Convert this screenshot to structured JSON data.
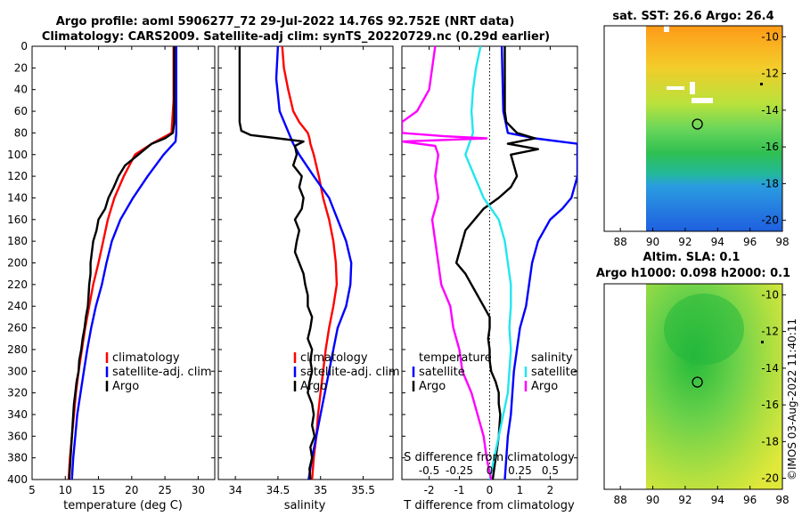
{
  "title": {
    "line1": "Argo profile: aoml 5906277_72 29-Jul-2022 14.76S 92.752E (NRT data)",
    "line2": "Climatology: CARS2009. Satellite-adj clim: synTS_20220729.nc (0.29d earlier)"
  },
  "credit": "©IMOS 03-Aug-2022 11:40:11",
  "colors": {
    "climatology": "#ff0000",
    "satellite": "#0000ff",
    "argo": "#000000",
    "cyan": "#22e6ee",
    "magenta": "#ff00ff"
  },
  "chart_data": [
    {
      "id": "temperature",
      "type": "line",
      "xlabel": "temperature (deg C)",
      "xlim": [
        5,
        32.5
      ],
      "ylim": [
        0,
        400
      ],
      "xticks": [
        5,
        10,
        15,
        20,
        25,
        30
      ],
      "yticks": [
        0,
        20,
        40,
        60,
        80,
        100,
        120,
        140,
        160,
        180,
        200,
        220,
        240,
        260,
        280,
        300,
        320,
        340,
        360,
        380,
        400
      ],
      "legend": [
        "climatology",
        "satellite-adj. clim",
        "Argo"
      ],
      "series": [
        {
          "name": "climatology",
          "color": "#ff0000",
          "depth": [
            0,
            50,
            80,
            90,
            100,
            120,
            140,
            160,
            180,
            200,
            220,
            240,
            260,
            280,
            300,
            320,
            340,
            360,
            380,
            400
          ],
          "values": [
            26.3,
            26.3,
            26.0,
            23.0,
            20.5,
            18.8,
            17.4,
            16.4,
            15.7,
            15.0,
            14.2,
            13.6,
            13.0,
            12.5,
            12.0,
            11.6,
            11.3,
            11.0,
            10.7,
            10.5
          ]
        },
        {
          "name": "satellite-adj. clim",
          "color": "#0000ff",
          "depth": [
            0,
            80,
            88,
            100,
            120,
            140,
            160,
            180,
            200,
            220,
            240,
            260,
            280,
            300,
            320,
            340,
            360,
            380,
            400
          ],
          "values": [
            26.7,
            26.7,
            26.6,
            24.8,
            22.4,
            20.2,
            18.3,
            17.0,
            16.2,
            15.5,
            14.6,
            13.9,
            13.3,
            12.8,
            12.3,
            11.8,
            11.5,
            11.2,
            11.0
          ]
        },
        {
          "name": "Argo",
          "color": "#000000",
          "depth": [
            0,
            70,
            80,
            85,
            90,
            95,
            100,
            110,
            120,
            130,
            140,
            150,
            160,
            170,
            180,
            190,
            200,
            210,
            220,
            230,
            240,
            250,
            260,
            270,
            280,
            290,
            300,
            310,
            320,
            330,
            340,
            360,
            380,
            400
          ],
          "values": [
            26.4,
            26.4,
            26.2,
            25.0,
            23.0,
            22.0,
            21.0,
            19.0,
            18.0,
            17.3,
            16.5,
            16.0,
            15.0,
            14.7,
            14.2,
            14.0,
            13.8,
            13.8,
            13.6,
            13.5,
            13.4,
            13.1,
            12.9,
            12.6,
            12.4,
            12.1,
            12.0,
            11.7,
            11.5,
            11.3,
            11.2,
            11.0,
            10.8,
            10.6
          ]
        }
      ]
    },
    {
      "id": "salinity",
      "type": "line",
      "xlabel": "salinity",
      "xlim": [
        33.8,
        35.85
      ],
      "ylim": [
        0,
        400
      ],
      "xticks": [
        34,
        34.5,
        35,
        35.5
      ],
      "legend": [
        "climatology",
        "satellite-adj. clim",
        "Argo"
      ],
      "series": [
        {
          "name": "climatology",
          "color": "#ff0000",
          "depth": [
            0,
            20,
            40,
            60,
            70,
            80,
            85,
            90,
            100,
            120,
            140,
            160,
            180,
            200,
            220,
            240,
            260,
            280,
            300,
            320,
            340,
            360,
            380,
            400
          ],
          "values": [
            34.55,
            34.57,
            34.62,
            34.68,
            34.75,
            34.85,
            34.87,
            34.88,
            34.92,
            34.98,
            35.03,
            35.1,
            35.15,
            35.18,
            35.19,
            35.15,
            35.1,
            35.06,
            35.03,
            35.0,
            34.97,
            34.95,
            34.92,
            34.9
          ]
        },
        {
          "name": "satellite-adj. clim",
          "color": "#0000ff",
          "depth": [
            0,
            30,
            60,
            90,
            100,
            120,
            140,
            160,
            180,
            200,
            220,
            240,
            260,
            280,
            300,
            320,
            340,
            360,
            380,
            400
          ],
          "values": [
            34.5,
            34.48,
            34.52,
            34.68,
            34.75,
            34.92,
            35.1,
            35.2,
            35.3,
            35.36,
            35.35,
            35.3,
            35.2,
            35.15,
            35.1,
            35.05,
            35.0,
            34.95,
            34.9,
            34.86
          ]
        },
        {
          "name": "Argo",
          "color": "#000000",
          "depth": [
            0,
            70,
            78,
            82,
            85,
            88,
            92,
            100,
            110,
            120,
            130,
            140,
            150,
            160,
            170,
            180,
            190,
            200,
            210,
            220,
            230,
            240,
            250,
            260,
            270,
            280,
            290,
            300,
            310,
            320,
            330,
            340,
            350,
            360,
            370,
            380,
            390,
            400
          ],
          "values": [
            34.05,
            34.05,
            34.07,
            34.18,
            34.5,
            34.8,
            34.7,
            34.72,
            34.68,
            34.78,
            34.75,
            34.8,
            34.78,
            34.7,
            34.75,
            34.72,
            34.7,
            34.75,
            34.8,
            34.82,
            34.85,
            34.85,
            34.9,
            34.88,
            34.85,
            34.9,
            34.88,
            34.9,
            34.87,
            34.85,
            34.9,
            34.92,
            34.9,
            34.93,
            34.88,
            34.9,
            34.87,
            34.88
          ]
        }
      ]
    },
    {
      "id": "difference",
      "type": "line",
      "xlabel": "T difference from climatology",
      "xlabel_top": "S difference from climatology",
      "xlim": [
        -2.9,
        2.9
      ],
      "ylim": [
        0,
        400
      ],
      "xticks": [
        -2,
        -1,
        0,
        1,
        2
      ],
      "sticks": {
        "labels": [
          "-0.5",
          "-0.25",
          "0",
          "0.25",
          "0.5"
        ],
        "values": [
          -2,
          -1,
          0,
          1,
          2
        ]
      },
      "legend_left": {
        "title": "temperature",
        "items": [
          "satellite",
          "Argo"
        ]
      },
      "legend_right": {
        "title": "salinity",
        "items": [
          "satellite",
          "Argo"
        ]
      },
      "series": [
        {
          "name": "T satellite",
          "color": "#0000ff",
          "depth": [
            0,
            60,
            80,
            85,
            90,
            100,
            110,
            120,
            130,
            140,
            150,
            160,
            180,
            200,
            220,
            240,
            260,
            280,
            300,
            320,
            340,
            360,
            380,
            400
          ],
          "values": [
            0.4,
            0.45,
            0.6,
            1.5,
            2.9,
            2.9,
            2.9,
            2.9,
            2.8,
            2.7,
            2.4,
            2.0,
            1.6,
            1.4,
            1.3,
            1.2,
            1.0,
            0.9,
            0.8,
            0.75,
            0.7,
            0.6,
            0.55,
            0.5
          ]
        },
        {
          "name": "T Argo",
          "color": "#000000",
          "depth": [
            0,
            60,
            70,
            80,
            85,
            90,
            95,
            100,
            110,
            120,
            130,
            140,
            150,
            160,
            170,
            180,
            190,
            200,
            210,
            220,
            230,
            240,
            250,
            260,
            270,
            280,
            290,
            300,
            310,
            320,
            330,
            340,
            360,
            380,
            400
          ],
          "values": [
            0.5,
            0.5,
            0.55,
            0.9,
            1.5,
            0.6,
            1.6,
            0.7,
            0.8,
            0.9,
            0.7,
            0.3,
            -0.2,
            -0.5,
            -0.8,
            -0.9,
            -1.0,
            -1.1,
            -0.8,
            -0.6,
            -0.4,
            -0.2,
            0.0,
            0.0,
            -0.05,
            0.0,
            0.0,
            0.05,
            0.2,
            0.3,
            0.3,
            0.35,
            0.3,
            0.2,
            0.1
          ]
        },
        {
          "name": "S satellite",
          "color": "#22e6ee",
          "depth": [
            0,
            20,
            40,
            60,
            80,
            100,
            120,
            140,
            160,
            180,
            200,
            220,
            240,
            260,
            280,
            300,
            320,
            340,
            360,
            380,
            400
          ],
          "values": [
            -0.3,
            -0.45,
            -0.55,
            -0.6,
            -0.55,
            -0.8,
            -0.5,
            -0.2,
            0.3,
            0.5,
            0.6,
            0.7,
            0.7,
            0.65,
            0.7,
            0.65,
            0.6,
            0.45,
            0.3,
            0.15,
            0.0
          ]
        },
        {
          "name": "S Argo",
          "color": "#ff00ff",
          "depth": [
            0,
            40,
            60,
            70,
            80,
            83,
            85,
            88,
            92,
            100,
            120,
            140,
            160,
            180,
            200,
            220,
            240,
            260,
            280,
            300,
            320,
            340,
            360,
            380,
            400
          ],
          "values": [
            -1.8,
            -2.0,
            -2.4,
            -2.9,
            -2.9,
            -1.5,
            -0.1,
            -2.9,
            -1.8,
            -1.7,
            -1.8,
            -1.7,
            -1.9,
            -1.8,
            -1.7,
            -1.6,
            -1.3,
            -1.2,
            -1.0,
            -0.9,
            -0.6,
            -0.4,
            -0.2,
            -0.1,
            0.05
          ]
        }
      ]
    },
    {
      "id": "sst_map",
      "type": "heatmap",
      "title": "sat. SST: 26.6 Argo: 26.4",
      "xlim": [
        87,
        98
      ],
      "ylim": [
        -20.6,
        -9.4
      ],
      "xticks": [
        88,
        90,
        92,
        94,
        96,
        98
      ],
      "yticks": [
        -10,
        -12,
        -14,
        -16,
        -18,
        -20
      ],
      "float_position": {
        "lon": 92.752,
        "lat": -14.76
      }
    },
    {
      "id": "sla_map",
      "type": "heatmap",
      "title": "Altim. SLA: 0.1",
      "subtitle": "Argo h1000: 0.098 h2000: 0.1",
      "xlim": [
        87,
        98
      ],
      "ylim": [
        -20.6,
        -9.4
      ],
      "xticks": [
        88,
        90,
        92,
        94,
        96,
        98
      ],
      "yticks": [
        -10,
        -12,
        -14,
        -16,
        -18,
        -20
      ],
      "float_position": {
        "lon": 92.752,
        "lat": -14.76
      }
    }
  ]
}
